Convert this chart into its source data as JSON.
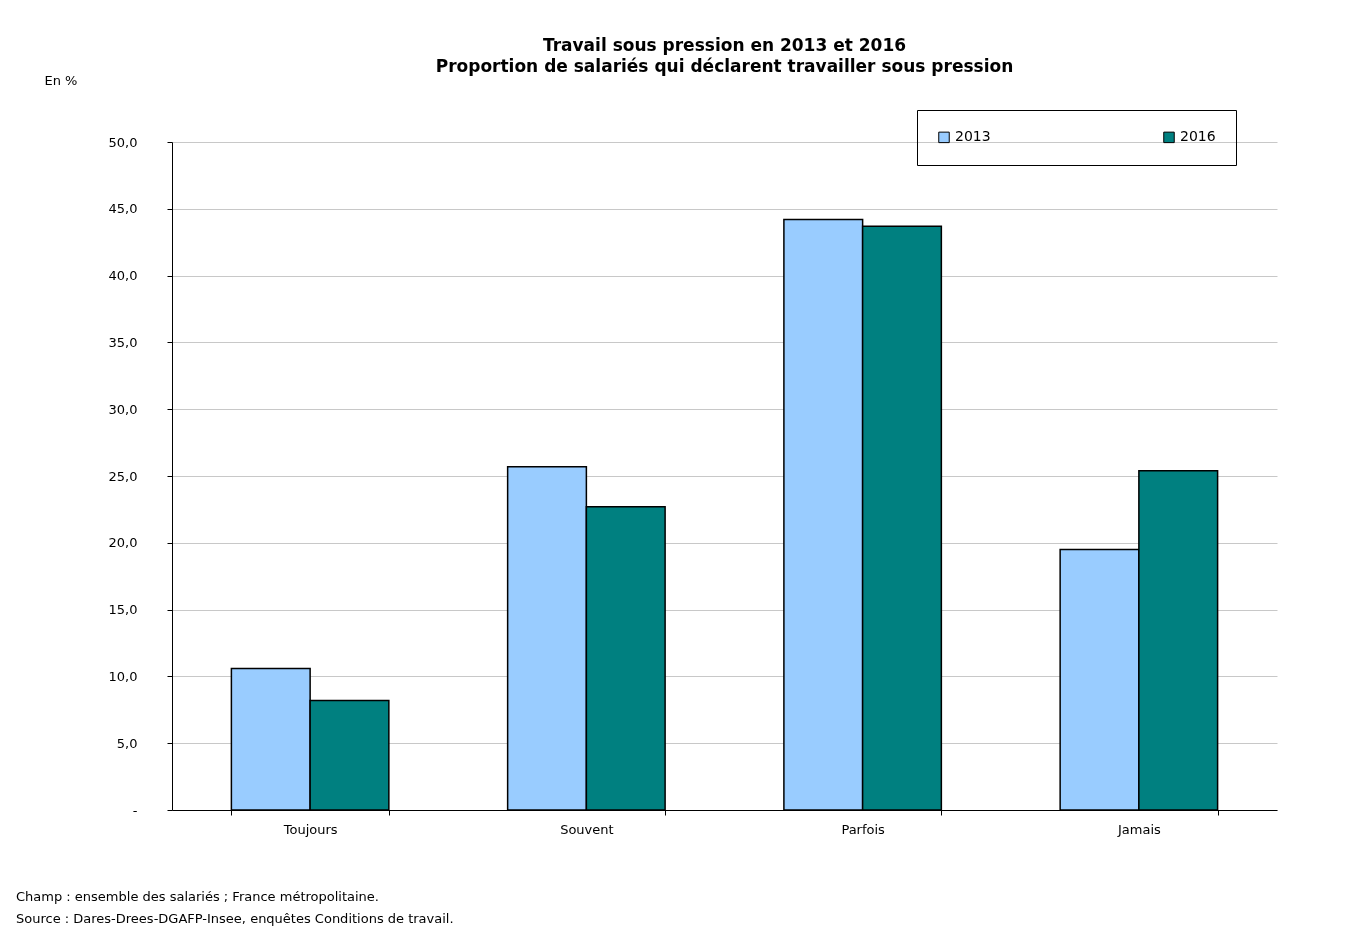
{
  "chart_data": {
    "type": "bar",
    "title": "Travail sous pression en 2013 et 2016",
    "subtitle": "Proportion de salariés qui déclarent travailler sous pression",
    "ylabel": "En %",
    "categories": [
      "Toujours",
      "Souvent",
      "Parfois",
      "Jamais"
    ],
    "series": [
      {
        "name": "2013",
        "color": "#99ccff",
        "values": [
          10.6,
          25.7,
          44.2,
          19.5
        ]
      },
      {
        "name": "2016",
        "color": "#008080",
        "values": [
          8.2,
          22.7,
          43.7,
          25.4
        ]
      }
    ],
    "ylim": [
      0,
      50
    ],
    "yticks": [
      {
        "value": 0,
        "label": "-"
      },
      {
        "value": 5,
        "label": "5,0"
      },
      {
        "value": 10,
        "label": "10,0"
      },
      {
        "value": 15,
        "label": "15,0"
      },
      {
        "value": 20,
        "label": "20,0"
      },
      {
        "value": 25,
        "label": "25,0"
      },
      {
        "value": 30,
        "label": "30,0"
      },
      {
        "value": 35,
        "label": "35,0"
      },
      {
        "value": 40,
        "label": "40,0"
      },
      {
        "value": 45,
        "label": "45,0"
      },
      {
        "value": 50,
        "label": "50,0"
      }
    ],
    "grid": "y",
    "legend": "top right",
    "annotations": [
      "Champ : ensemble des salariés ; France métropolitaine.",
      "Source : Dares-Drees-DGAFP-Insee, enquêtes Conditions de travail."
    ]
  }
}
